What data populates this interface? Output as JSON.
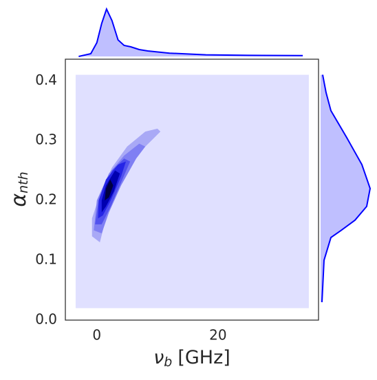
{
  "chart_data": {
    "type": "jointkde",
    "xlabel": {
      "symbol": "ν",
      "subscript": "b",
      "unit": "[GHz]"
    },
    "ylabel": {
      "symbol": "α",
      "subscript": "nth"
    },
    "xlim": [
      -5.2,
      36.6
    ],
    "xticks": [
      0,
      20
    ],
    "ylim": [
      0,
      0.436
    ],
    "yticks": [
      {
        "value": 0,
        "label": "0.0"
      },
      0.1,
      0.2,
      0.3,
      0.4
    ],
    "color": "#0000ff",
    "contours": [
      {
        "color": "#e0e0ff",
        "points": [
          [
            -3.5,
            0.02
          ],
          [
            35,
            0.02
          ],
          [
            35,
            0.41
          ],
          [
            -3.5,
            0.41
          ]
        ]
      },
      {
        "color": "#a9a9f6",
        "points": [
          [
            -0.8,
            0.14
          ],
          [
            0.5,
            0.13
          ],
          [
            1.5,
            0.17
          ],
          [
            3.5,
            0.22
          ],
          [
            6,
            0.27
          ],
          [
            9,
            0.3
          ],
          [
            10.5,
            0.315
          ],
          [
            10,
            0.32
          ],
          [
            8,
            0.315
          ],
          [
            5,
            0.29
          ],
          [
            2.5,
            0.255
          ],
          [
            0.5,
            0.21
          ],
          [
            -0.8,
            0.17
          ]
        ]
      },
      {
        "color": "#7f7ff3",
        "points": [
          [
            -0.5,
            0.15
          ],
          [
            0.8,
            0.145
          ],
          [
            2,
            0.18
          ],
          [
            4,
            0.225
          ],
          [
            6.5,
            0.27
          ],
          [
            8,
            0.29
          ],
          [
            7,
            0.295
          ],
          [
            4.5,
            0.275
          ],
          [
            2,
            0.245
          ],
          [
            0,
            0.2
          ]
        ]
      },
      {
        "color": "#5252ee",
        "points": [
          [
            -0.3,
            0.16
          ],
          [
            0.8,
            0.16
          ],
          [
            2.3,
            0.19
          ],
          [
            4,
            0.23
          ],
          [
            5.5,
            0.265
          ],
          [
            4.5,
            0.27
          ],
          [
            2.5,
            0.25
          ],
          [
            0.3,
            0.2
          ]
        ]
      },
      {
        "color": "#2525e6",
        "points": [
          [
            0.2,
            0.17
          ],
          [
            1,
            0.175
          ],
          [
            2.3,
            0.2
          ],
          [
            4,
            0.24
          ],
          [
            4.8,
            0.265
          ],
          [
            3.5,
            0.26
          ],
          [
            1.5,
            0.235
          ],
          [
            0.3,
            0.2
          ]
        ]
      },
      {
        "color": "#0000b0",
        "points": [
          [
            0.8,
            0.18
          ],
          [
            1.5,
            0.19
          ],
          [
            2.8,
            0.215
          ],
          [
            3.8,
            0.245
          ],
          [
            3,
            0.25
          ],
          [
            1.5,
            0.225
          ],
          [
            0.8,
            0.2
          ]
        ]
      },
      {
        "color": "#000040",
        "points": [
          [
            1.3,
            0.2
          ],
          [
            2,
            0.205
          ],
          [
            2.7,
            0.225
          ],
          [
            2.2,
            0.235
          ],
          [
            1.5,
            0.22
          ]
        ]
      }
    ],
    "top_marginal": {
      "density_lim": [
        0,
        0.185
      ],
      "x": [
        -3,
        -1,
        0,
        0.8,
        1.6,
        2.5,
        3.5,
        4.5,
        5.6,
        7,
        8.4,
        12,
        18,
        25,
        34
      ],
      "density": [
        0,
        0.01,
        0.05,
        0.12,
        0.172,
        0.13,
        0.06,
        0.04,
        0.035,
        0.025,
        0.02,
        0.012,
        0.006,
        0.004,
        0.003
      ]
    },
    "right_marginal": {
      "density_lim": [
        0,
        8
      ],
      "y": [
        0.03,
        0.1,
        0.138,
        0.15,
        0.167,
        0.19,
        0.22,
        0.26,
        0.305,
        0.35,
        0.38,
        0.41
      ],
      "density": [
        0.2,
        0.5,
        1.5,
        3.0,
        5.0,
        6.7,
        7.2,
        6.0,
        3.8,
        1.5,
        0.8,
        0.3
      ]
    }
  }
}
